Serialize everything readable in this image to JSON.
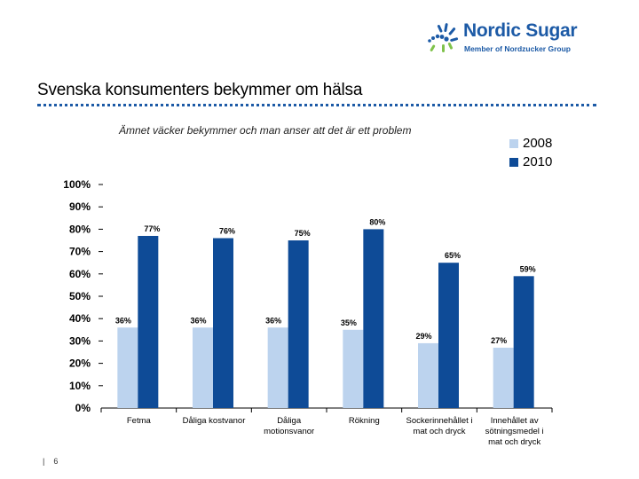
{
  "brand": {
    "name": "Nordic Sugar",
    "tagline": "Member of Nordzucker Group",
    "color": "#1c5aa6"
  },
  "slide": {
    "title": "Svenska konsumenters bekymmer om hälsa",
    "page_number": "6",
    "footer_separator": "|"
  },
  "chart_data": {
    "type": "bar",
    "title": "Ämnet väcker bekymmer och man anser att det är ett problem",
    "xlabel": "",
    "ylabel": "",
    "ylim": [
      0,
      100
    ],
    "yticks": [
      "0%",
      "10%",
      "20%",
      "30%",
      "40%",
      "50%",
      "60%",
      "70%",
      "80%",
      "90%",
      "100%"
    ],
    "categories": [
      [
        "Fetma"
      ],
      [
        "Dåliga kostvanor"
      ],
      [
        "Dåliga",
        "motionsvanor"
      ],
      [
        "Rökning"
      ],
      [
        "Sockerinnehållet i",
        "mat och dryck"
      ],
      [
        "Innehållet av",
        "sötningsmedel i",
        "mat och dryck"
      ]
    ],
    "series": [
      {
        "name": "2008",
        "color": "#bcd3ee",
        "values": [
          36,
          36,
          36,
          35,
          29,
          27
        ],
        "labels": [
          "36%",
          "36%",
          "36%",
          "35%",
          "29%",
          "27%"
        ]
      },
      {
        "name": "2010",
        "color": "#0e4b97",
        "values": [
          77,
          76,
          75,
          80,
          65,
          59
        ],
        "labels": [
          "77%",
          "76%",
          "75%",
          "80%",
          "65%",
          "59%"
        ]
      }
    ],
    "legend_position": "top-right"
  }
}
